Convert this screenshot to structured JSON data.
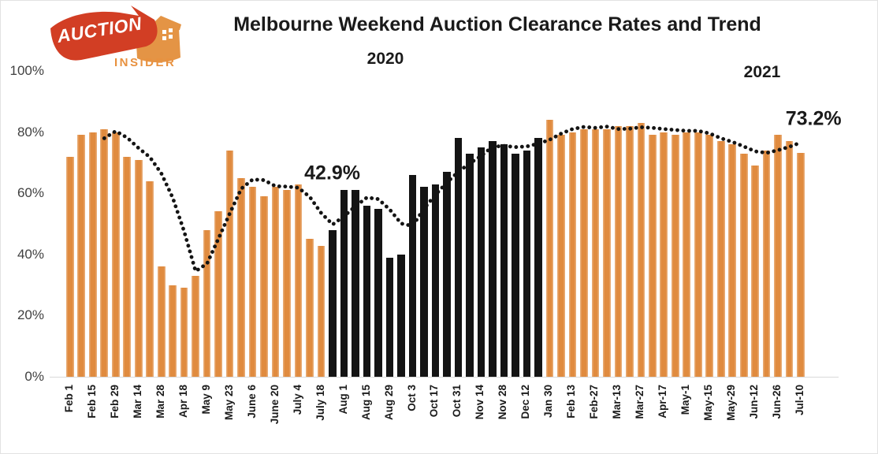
{
  "logo": {
    "word1": "AUCTION",
    "word2": "INSIDER",
    "banner_color": "#D23E24",
    "house_color": "#E49445",
    "word1_color": "#FFFFFF",
    "word2_color": "#E8913F"
  },
  "header": {
    "title": "Melbourne Weekend Auction Clearance Rates and Trend",
    "year_left": "2020",
    "year_right": "2021"
  },
  "chart_data": {
    "type": "bar",
    "title": "Melbourne Weekend Auction Clearance Rates and Trend",
    "ylim": [
      0,
      100
    ],
    "grid": "none",
    "legend": "none",
    "y_tick_labels": [
      "0%",
      "20%",
      "40%",
      "60%",
      "80%",
      "100%"
    ],
    "x_tick_labels": [
      "Feb 1",
      "Feb 15",
      "Feb 29",
      "Mar 14",
      "Mar 28",
      "Apr 18",
      "May 9",
      "May 23",
      "June 6",
      "June 20",
      "July 4",
      "July 18",
      "Aug 1",
      "Aug 15",
      "Aug 29",
      "Oct 3",
      "Oct 17",
      "Oct 31",
      "Nov 14",
      "Nov 28",
      "Dec 12",
      "Jan 30",
      "Feb 13",
      "Feb-27",
      "Mar-13",
      "Mar-27",
      "Apr-17",
      "May-1",
      "May-15",
      "May-29",
      "Jun-12",
      "Jun-26",
      "Jul-10"
    ],
    "x_tick_every_n_bars": 2,
    "bar_values": [
      72,
      79,
      80,
      81,
      80,
      72,
      71,
      64,
      36,
      30,
      29,
      33,
      48,
      54,
      74,
      65,
      62,
      59,
      62,
      61,
      63,
      45,
      42.9,
      48,
      61,
      61,
      56,
      55,
      39,
      40,
      66,
      62,
      63,
      67,
      78,
      73,
      75,
      77,
      76,
      73,
      74,
      78,
      84,
      79,
      80,
      81,
      81,
      81,
      82,
      82,
      83,
      79,
      80,
      79,
      80,
      80,
      79,
      77,
      76,
      73,
      69,
      74,
      79,
      77,
      73.2
    ],
    "bar_color_segments": [
      {
        "start_bar": 1,
        "end_bar": 23,
        "color": "#E08B3F",
        "name": "2020-pre-lockdown-orange"
      },
      {
        "start_bar": 24,
        "end_bar": 42,
        "color": "#141414",
        "name": "2020-lockdown-black"
      },
      {
        "start_bar": 43,
        "end_bar": 65,
        "color": "#E08B3F",
        "name": "2021-orange"
      }
    ],
    "trend_line": {
      "style": "dotted",
      "color": "#141414",
      "values": [
        null,
        null,
        null,
        78,
        80.3,
        78.2,
        74.8,
        71.8,
        66.5,
        58.5,
        47.5,
        34.5,
        37,
        45.2,
        53.5,
        61.5,
        64.5,
        64.3,
        62.3,
        62.2,
        61.8,
        58.8,
        53.5,
        49.8,
        52.5,
        55.8,
        58.6,
        58.1,
        54.7,
        50.1,
        49.3,
        55,
        59.5,
        63.5,
        67,
        69.8,
        72.2,
        75.2,
        75.5,
        75.1,
        75.3,
        76.2,
        77.5,
        79.5,
        81,
        81.7,
        81.4,
        81.8,
        81,
        81.1,
        81.6,
        81.4,
        81,
        80.7,
        80.4,
        80.4,
        79.6,
        78,
        76.8,
        75.3,
        73.7,
        73.2,
        74.1,
        75.2,
        76.6
      ]
    },
    "annotations": [
      {
        "text": "42.9%",
        "anchor_bar": 23,
        "dx": 14,
        "pct_y": 66.4
      },
      {
        "text": "73.2%",
        "anchor_bar": 65,
        "dx": 16,
        "pct_y": 84.2
      }
    ]
  }
}
